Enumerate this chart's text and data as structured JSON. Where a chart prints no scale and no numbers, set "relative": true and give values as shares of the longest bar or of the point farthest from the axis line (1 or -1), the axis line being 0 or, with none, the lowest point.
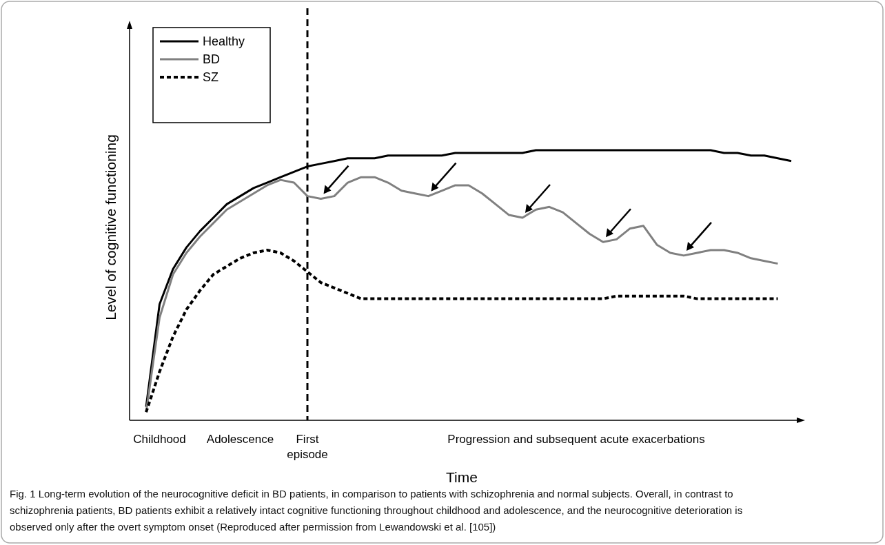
{
  "chart_data": {
    "type": "line",
    "relative": true,
    "xlabel": "Time",
    "ylabel": "Level of cognitive functioning",
    "legend": "top left",
    "categories": [
      null,
      "Childhood",
      null,
      null,
      null,
      null,
      null,
      "Adolescence",
      null,
      null,
      null,
      null,
      "First episode",
      null,
      null,
      null,
      null,
      null,
      null,
      null,
      null,
      null,
      null,
      null,
      null,
      null,
      null,
      null,
      null,
      null,
      null,
      null,
      "Progression and subsequent acute exacerbations",
      null,
      null,
      null,
      null,
      null,
      null,
      null,
      null,
      null,
      null,
      null,
      null,
      null,
      null,
      null,
      null
    ],
    "series": [
      {
        "name": "Healthy",
        "color": "#000000",
        "line_style": "solid",
        "values": [
          0.05,
          0.43,
          0.56,
          0.64,
          0.7,
          0.75,
          0.8,
          0.83,
          0.86,
          0.88,
          0.9,
          0.92,
          0.94,
          0.95,
          0.96,
          0.97,
          0.97,
          0.97,
          0.98,
          0.98,
          0.98,
          0.98,
          0.98,
          0.99,
          0.99,
          0.99,
          0.99,
          0.99,
          0.99,
          1,
          1,
          1,
          1,
          1,
          1,
          1,
          1,
          1,
          1,
          1,
          1,
          1,
          1,
          0.99,
          0.99,
          0.98,
          0.98,
          0.97,
          0.96
        ]
      },
      {
        "name": "BD",
        "color": "#808080",
        "line_style": "solid",
        "values": [
          0.03,
          0.38,
          0.54,
          0.62,
          0.68,
          0.73,
          0.78,
          0.81,
          0.84,
          0.87,
          0.89,
          0.88,
          0.83,
          0.82,
          0.83,
          0.88,
          0.9,
          0.9,
          0.88,
          0.85,
          0.84,
          0.83,
          0.85,
          0.87,
          0.87,
          0.84,
          0.8,
          0.76,
          0.75,
          0.78,
          0.79,
          0.77,
          0.73,
          0.69,
          0.66,
          0.67,
          0.71,
          0.72,
          0.65,
          0.62,
          0.61,
          0.62,
          0.63,
          0.63,
          0.62,
          0.6,
          0.59,
          0.58,
          null
        ]
      },
      {
        "name": "SZ",
        "color": "#000000",
        "line_style": "dashed",
        "values": [
          0.03,
          0.18,
          0.31,
          0.41,
          0.48,
          0.54,
          0.57,
          0.6,
          0.62,
          0.63,
          0.62,
          0.59,
          0.55,
          0.51,
          0.49,
          0.47,
          0.45,
          0.45,
          0.45,
          0.45,
          0.45,
          0.45,
          0.45,
          0.45,
          0.45,
          0.45,
          0.45,
          0.45,
          0.45,
          0.45,
          0.45,
          0.45,
          0.45,
          0.45,
          0.45,
          0.46,
          0.46,
          0.46,
          0.46,
          0.46,
          0.46,
          0.45,
          0.45,
          0.45,
          0.45,
          0.45,
          0.45,
          0.45,
          null
        ]
      }
    ],
    "ref_lines": [
      {
        "axis": "x",
        "value": "First episode",
        "color": "#000000",
        "line_style": "dashed"
      }
    ],
    "annotations": [
      "Fig. 1  Long-term evolution of the neurocognitive deficit in BD patients, in comparison to patients with schizophrenia and normal subjects. Overall, in contrast to schizophrenia patients, BD patients exhibit a relatively intact cognitive functioning throughout childhood and adolescence, and the neurocognitive deterioration is observed only after the overt symptom onset (Reproduced after permission from Lewandowski et al. [105])"
    ]
  }
}
